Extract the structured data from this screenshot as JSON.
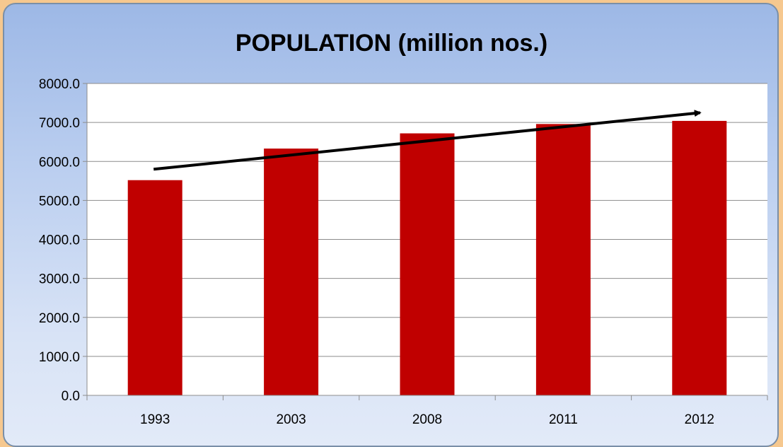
{
  "chart_data": {
    "type": "bar",
    "title": "POPULATION (million nos.)",
    "categories": [
      "1993",
      "2003",
      "2008",
      "2011",
      "2012"
    ],
    "values": [
      5520,
      6330,
      6720,
      6960,
      7040
    ],
    "ylim": [
      0,
      8000
    ],
    "yticks": [
      "0.0",
      "1000.0",
      "2000.0",
      "3000.0",
      "4000.0",
      "5000.0",
      "6000.0",
      "7000.0",
      "8000.0"
    ],
    "ytick_values": [
      0,
      1000,
      2000,
      3000,
      4000,
      5000,
      6000,
      7000,
      8000
    ],
    "grid": true,
    "bar_color": "#c00000",
    "trend_arrow": {
      "from": {
        "x": "1993",
        "y": 5800
      },
      "to": {
        "x": "2012",
        "y": 7250
      },
      "color": "#000000"
    }
  }
}
